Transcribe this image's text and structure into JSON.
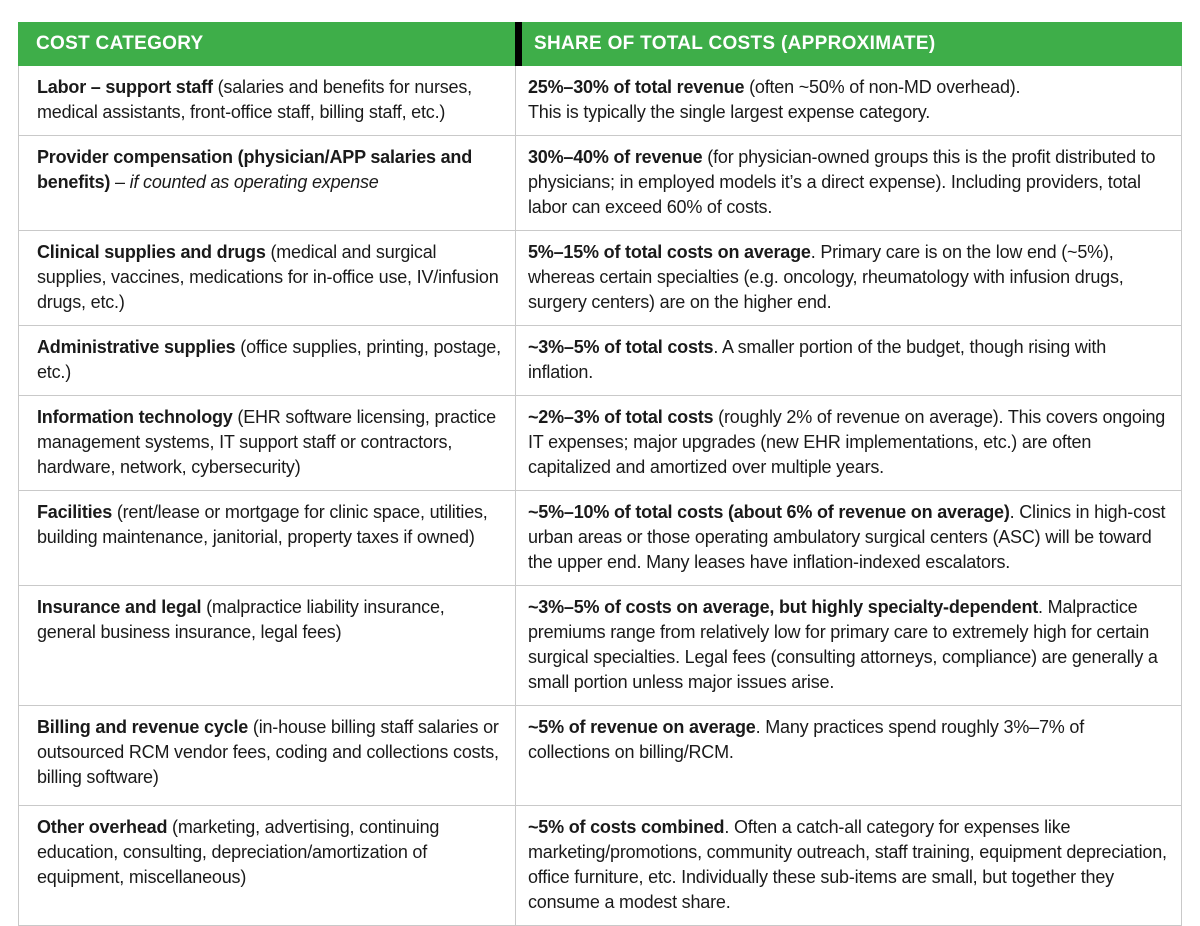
{
  "colors": {
    "header_green": "#3EAE49",
    "header_divider_black": "#000000",
    "grid_border_gray": "#c9c9c9",
    "body_text": "#1a1a1a",
    "header_text": "#ffffff"
  },
  "table": {
    "header": {
      "col1": "COST CATEGORY",
      "col2": "SHARE OF TOTAL COSTS (APPROXIMATE)"
    },
    "rows": [
      {
        "cat_bold": "Labor – support staff",
        "cat_rest": " (salaries and benefits for nurses, medical assistants, front-office staff, billing staff, etc.)",
        "cat_italic": "",
        "share_bold": "25%–30% of total revenue",
        "share_rest": " (often ~50% of non-MD overhead).",
        "share_line2": "This is typically the single largest expense category."
      },
      {
        "cat_bold": "Provider compensation (physician/APP salaries and benefits)",
        "cat_rest": " – ",
        "cat_italic": "if counted as operating expense",
        "share_bold": "30%–40% of revenue",
        "share_rest": " (for physician-owned groups this is the profit distributed to physicians; in employed models it’s a direct expense). Including providers, total labor can exceed 60% of costs.",
        "share_line2": ""
      },
      {
        "cat_bold": "Clinical supplies and drugs",
        "cat_rest": " (medical and surgical supplies, vaccines, medications for in-office use, IV/infusion drugs, etc.)",
        "cat_italic": "",
        "share_bold": "5%–15% of total costs on average",
        "share_rest": ". Primary care is on the low end (~5%), whereas certain specialties (e.g. oncology, rheumatology with infusion drugs, surgery centers) are on the higher end.",
        "share_line2": ""
      },
      {
        "cat_bold": "Administrative supplies",
        "cat_rest": " (office supplies, printing, postage, etc.)",
        "cat_italic": "",
        "share_bold": "~3%–5% of total costs",
        "share_rest": ". A smaller portion of the budget, though rising with inflation.",
        "share_line2": ""
      },
      {
        "cat_bold": "Information technology",
        "cat_rest": " (EHR software licensing, practice management systems, IT support staff or contractors, hardware, network, cybersecurity)",
        "cat_italic": "",
        "share_bold": "~2%–3% of total costs",
        "share_rest": " (roughly 2% of revenue on average). This covers ongoing IT expenses; major upgrades (new EHR implementations, etc.) are often capitalized and amortized over multiple years.",
        "share_line2": ""
      },
      {
        "cat_bold": "Facilities",
        "cat_rest": " (rent/lease or mortgage for clinic space, utilities, building maintenance, janitorial, property taxes if owned)",
        "cat_italic": "",
        "share_bold": "~5%–10% of total costs (about 6% of revenue on average)",
        "share_rest": ". Clinics in high-cost urban areas or those operating ambulatory surgical centers (ASC) will be toward the upper end. Many leases have inflation-indexed escalators.",
        "share_line2": ""
      },
      {
        "cat_bold": "Insurance and legal",
        "cat_rest": " (malpractice liability insurance, general business insurance, legal fees)",
        "cat_italic": "",
        "share_bold": "~3%–5% of costs on average, but highly specialty-dependent",
        "share_rest": ". Malpractice premiums range from relatively low for primary care to extremely high for certain surgical specialties. Legal fees (consulting attorneys, compliance) are generally a small portion unless major issues arise.",
        "share_line2": ""
      },
      {
        "cat_bold": "Billing and revenue cycle",
        "cat_rest": " (in-house billing staff salaries or outsourced RCM vendor fees, coding and collections costs, billing software)",
        "cat_italic": "",
        "share_bold": "~5% of revenue on average",
        "share_rest": ". Many practices spend roughly 3%–7% of collections on billing/RCM.",
        "share_line2": ""
      },
      {
        "cat_bold": "Other overhead",
        "cat_rest": " (marketing, advertising, continuing education, consulting, depreciation/amortization of equipment, miscellaneous)",
        "cat_italic": "",
        "share_bold": "~5% of costs combined",
        "share_rest": ". Often a catch-all category for expenses like marketing/promotions, community outreach, staff training, equipment depreciation, office furniture, etc. Individually these sub-items are small, but together they consume a modest share.",
        "share_line2": ""
      }
    ]
  }
}
